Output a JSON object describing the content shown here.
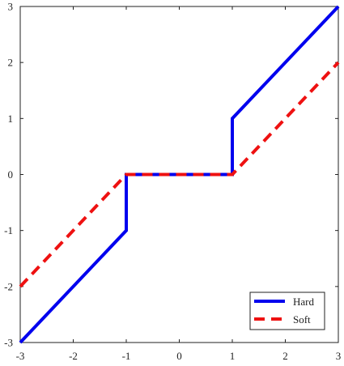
{
  "chart_data": {
    "type": "line",
    "title": "",
    "xlabel": "",
    "ylabel": "",
    "xlim": [
      -3,
      3
    ],
    "ylim": [
      -3,
      3
    ],
    "xticks": [
      -3,
      -2,
      -1,
      0,
      1,
      2,
      3
    ],
    "yticks": [
      -3,
      -2,
      -1,
      0,
      1,
      2,
      3
    ],
    "grid": false,
    "legend_position": "bottom-right",
    "series": [
      {
        "name": "Hard",
        "color": "#0000ee",
        "style": "solid",
        "x": [
          -3,
          -1,
          -1,
          1,
          1,
          3
        ],
        "y": [
          -3,
          -1,
          0,
          0,
          1,
          3
        ]
      },
      {
        "name": "Soft",
        "color": "#ee1111",
        "style": "dashed",
        "x": [
          -3,
          -1,
          1,
          3
        ],
        "y": [
          -2,
          0,
          0,
          2
        ]
      }
    ]
  }
}
